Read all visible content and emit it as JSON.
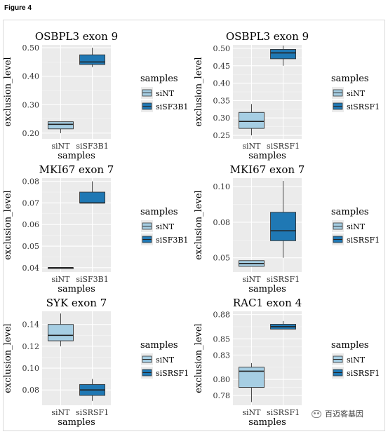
{
  "figure": {
    "label": "Figure 4"
  },
  "watermark": {
    "text": "百迈客基因"
  },
  "colors": {
    "siNT": "#a6cee3",
    "siSF3B1": "#1f78b4",
    "siSRSF1": "#1f78b4",
    "panel_bg": "#ebebeb",
    "grid": "#ffffff"
  },
  "chart_data": [
    {
      "type": "box",
      "title": "OSBPL3 exon 9",
      "xlabel": "samples",
      "ylabel": "exclusion_level",
      "categories": [
        "siNT",
        "siSF3B1"
      ],
      "ylim": [
        0.18,
        0.51
      ],
      "yticks": [
        0.2,
        0.3,
        0.4,
        0.5
      ],
      "ytick_labels": [
        "0.20",
        "0.30",
        "0.40",
        "0.50"
      ],
      "boxes": [
        {
          "name": "siNT",
          "min": 0.2,
          "q1": 0.215,
          "median": 0.231,
          "q3": 0.24,
          "max": 0.24
        },
        {
          "name": "siSF3B1",
          "min": 0.432,
          "q1": 0.441,
          "median": 0.45,
          "q3": 0.475,
          "max": 0.5
        }
      ],
      "legend": {
        "title": "samples",
        "entries": [
          "siNT",
          "siSF3B1"
        ],
        "position": "right"
      }
    },
    {
      "type": "box",
      "title": "OSBPL3 exon 9",
      "xlabel": "samples",
      "ylabel": "exclusion_level",
      "categories": [
        "siNT",
        "siSRSF1"
      ],
      "ylim": [
        0.24,
        0.51
      ],
      "yticks": [
        0.25,
        0.3,
        0.35,
        0.4,
        0.45,
        0.5
      ],
      "ytick_labels": [
        "0.25",
        "0.30",
        "0.35",
        "0.40",
        "0.45",
        "0.50"
      ],
      "boxes": [
        {
          "name": "siNT",
          "min": 0.25,
          "q1": 0.27,
          "median": 0.29,
          "q3": 0.316,
          "max": 0.34
        },
        {
          "name": "siSRSF1",
          "min": 0.45,
          "q1": 0.47,
          "median": 0.487,
          "q3": 0.497,
          "max": 0.508
        }
      ],
      "legend": {
        "title": "samples",
        "entries": [
          "siNT",
          "siSRSF1"
        ],
        "position": "right"
      }
    },
    {
      "type": "box",
      "title": "MKI67 exon 7",
      "xlabel": "samples",
      "ylabel": "exclusion_level",
      "categories": [
        "siNT",
        "siSF3B1"
      ],
      "ylim": [
        0.038,
        0.0815
      ],
      "yticks": [
        0.04,
        0.05,
        0.06,
        0.07,
        0.08
      ],
      "ytick_labels": [
        "0.04",
        "0.05",
        "0.06",
        "0.07",
        "0.08"
      ],
      "boxes": [
        {
          "name": "siNT",
          "min": 0.04,
          "q1": 0.04,
          "median": 0.04,
          "q3": 0.04,
          "max": 0.04
        },
        {
          "name": "siSF3B1",
          "min": 0.07,
          "q1": 0.07,
          "median": 0.07,
          "q3": 0.075,
          "max": 0.08
        }
      ],
      "legend": {
        "title": "samples",
        "entries": [
          "siNT",
          "siSF3B1"
        ],
        "position": "right"
      }
    },
    {
      "type": "box",
      "title": "MKI67 exon 7",
      "xlabel": "samples",
      "ylabel": "exclusion_level",
      "categories": [
        "siNT",
        "siSRSF1"
      ],
      "ylim": [
        0.04,
        0.106
      ],
      "yticks": [
        0.05,
        0.075,
        0.1
      ],
      "ytick_labels": [
        "0.05",
        "0.08",
        "0.10"
      ],
      "boxes": [
        {
          "name": "siNT",
          "min": 0.044,
          "q1": 0.044,
          "median": 0.046,
          "q3": 0.048,
          "max": 0.048
        },
        {
          "name": "siSRSF1",
          "min": 0.05,
          "q1": 0.062,
          "median": 0.069,
          "q3": 0.082,
          "max": 0.104
        }
      ],
      "legend": {
        "title": "samples",
        "entries": [
          "siNT",
          "siSRSF1"
        ],
        "position": "right"
      }
    },
    {
      "type": "box",
      "title": "SYK exon 7",
      "xlabel": "samples",
      "ylabel": "exclusion_level",
      "categories": [
        "siNT",
        "siSRSF1"
      ],
      "ylim": [
        0.066,
        0.152
      ],
      "yticks": [
        0.08,
        0.1,
        0.12,
        0.14
      ],
      "ytick_labels": [
        "0.08",
        "0.10",
        "0.12",
        "0.14"
      ],
      "boxes": [
        {
          "name": "siNT",
          "min": 0.12,
          "q1": 0.125,
          "median": 0.13,
          "q3": 0.14,
          "max": 0.15
        },
        {
          "name": "siSRSF1",
          "min": 0.07,
          "q1": 0.075,
          "median": 0.08,
          "q3": 0.085,
          "max": 0.09
        }
      ],
      "legend": {
        "title": "samples",
        "entries": [
          "siNT",
          "siSRSF1"
        ],
        "position": "right"
      }
    },
    {
      "type": "box",
      "title": "RAC1 exon 4",
      "xlabel": "samples",
      "ylabel": "exclusion_level",
      "categories": [
        "siNT",
        "siSRSF1"
      ],
      "ylim": [
        0.768,
        0.884
      ],
      "yticks": [
        0.78,
        0.8,
        0.83,
        0.85,
        0.88
      ],
      "ytick_labels": [
        "0.78",
        "0.80",
        "0.83",
        "0.85",
        "0.88"
      ],
      "boxes": [
        {
          "name": "siNT",
          "min": 0.772,
          "q1": 0.79,
          "median": 0.81,
          "q3": 0.815,
          "max": 0.82
        },
        {
          "name": "siSRSF1",
          "min": 0.862,
          "q1": 0.862,
          "median": 0.865,
          "q3": 0.868,
          "max": 0.872
        }
      ],
      "legend": {
        "title": "samples",
        "entries": [
          "siNT",
          "siSRSF1"
        ],
        "position": "right"
      }
    }
  ]
}
